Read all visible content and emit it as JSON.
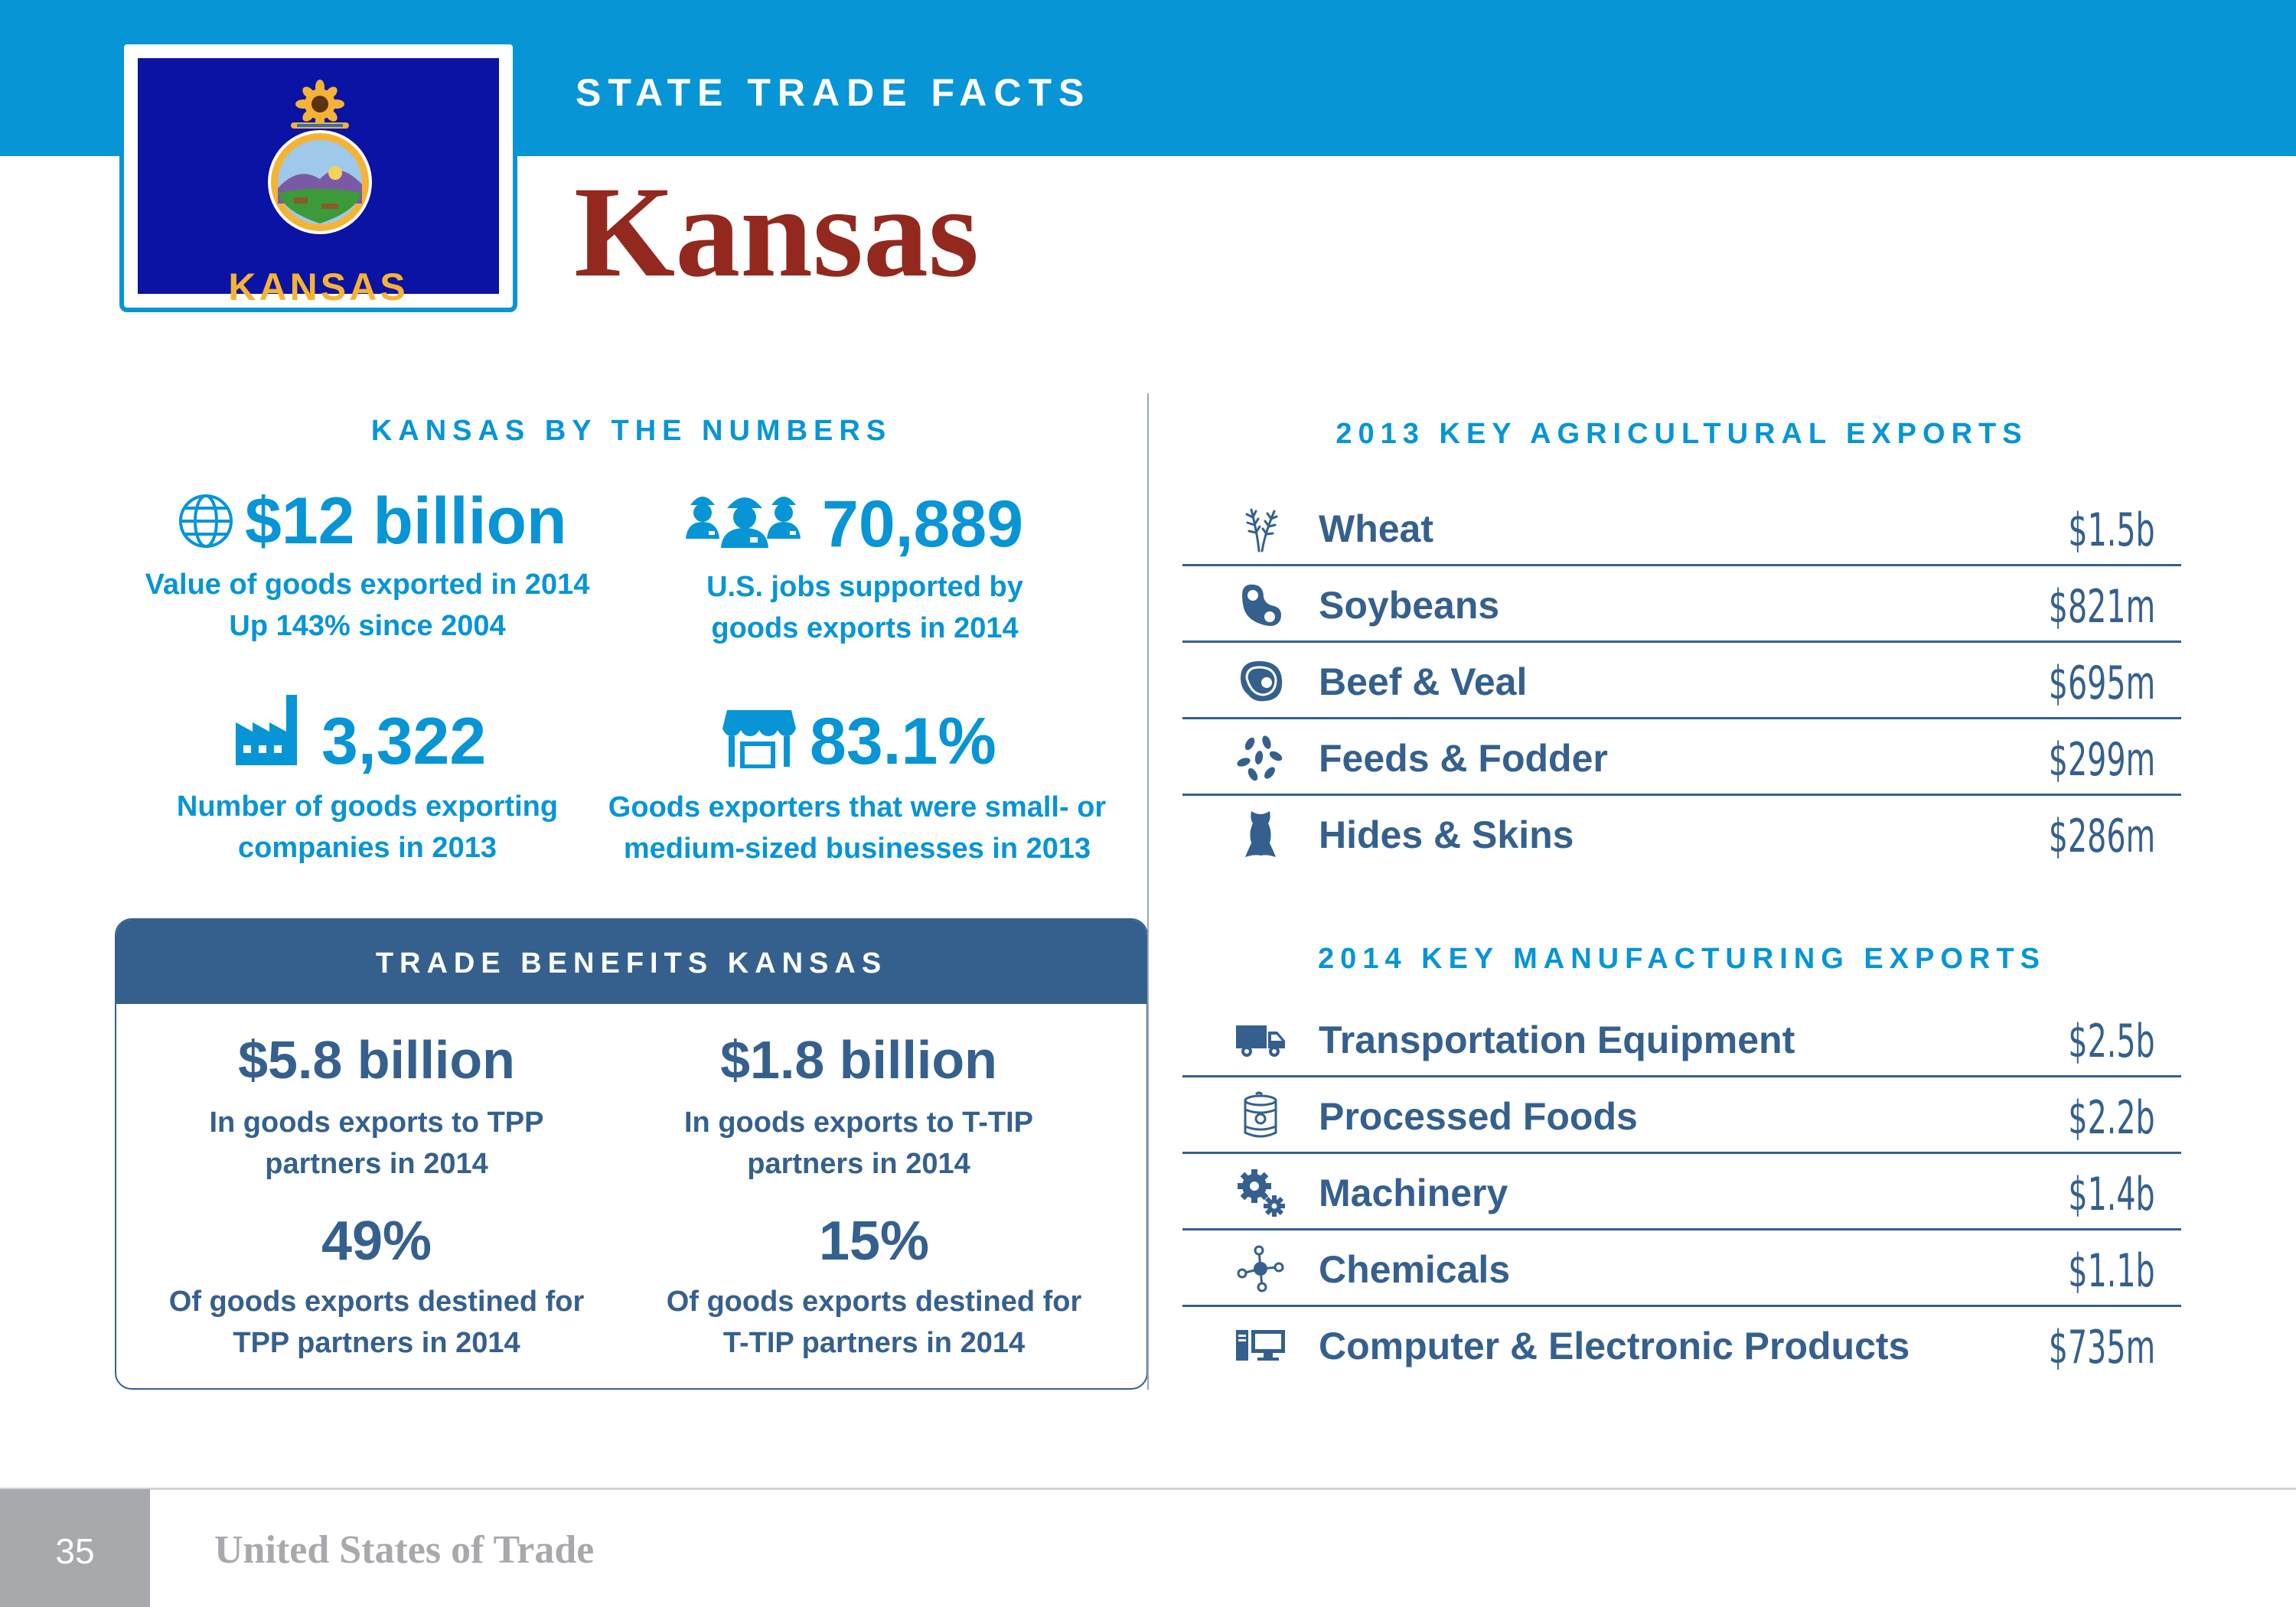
{
  "header": {
    "kicker": "STATE TRADE FACTS",
    "title": "Kansas",
    "flag_word": "KANSAS"
  },
  "numbers": {
    "heading": "KANSAS BY THE NUMBERS",
    "stats": [
      {
        "value": "$12 billion",
        "caption_1": "Value of goods exported in 2014",
        "caption_2": "Up 143% since 2004",
        "icon": "globe-icon"
      },
      {
        "value": "70,889",
        "caption_1": "U.S. jobs supported by",
        "caption_2": "goods exports in 2014",
        "icon": "workers-icon"
      },
      {
        "value": "3,322",
        "caption_1": "Number of goods exporting",
        "caption_2": "companies in 2013",
        "icon": "factory-icon"
      },
      {
        "value": "83.1%",
        "caption_1": "Goods exporters that were small- or",
        "caption_2": "medium-sized businesses in 2013",
        "icon": "storefront-icon"
      }
    ]
  },
  "benefits": {
    "heading": "TRADE BENEFITS KANSAS",
    "items": [
      {
        "value": "$5.8 billion",
        "caption_1": "In goods exports to TPP",
        "caption_2": "partners in 2014"
      },
      {
        "value": "$1.8 billion",
        "caption_1": "In goods exports to T-TIP",
        "caption_2": "partners in 2014"
      },
      {
        "value": "49%",
        "caption_1": "Of goods exports destined for",
        "caption_2": "TPP partners in 2014"
      },
      {
        "value": "15%",
        "caption_1": "Of goods exports destined for",
        "caption_2": "T-TIP partners in 2014"
      }
    ]
  },
  "agricultural": {
    "heading": "2013 KEY AGRICULTURAL EXPORTS",
    "rows": [
      {
        "name": "Wheat",
        "value": "$1.5b",
        "icon": "wheat-icon"
      },
      {
        "name": "Soybeans",
        "value": "$821m",
        "icon": "soybean-icon"
      },
      {
        "name": "Beef & Veal",
        "value": "$695m",
        "icon": "steak-icon"
      },
      {
        "name": "Feeds & Fodder",
        "value": "$299m",
        "icon": "grain-icon"
      },
      {
        "name": "Hides & Skins",
        "value": "$286m",
        "icon": "hide-icon"
      }
    ]
  },
  "manufacturing": {
    "heading": "2014 KEY MANUFACTURING EXPORTS",
    "rows": [
      {
        "name": "Transportation Equipment",
        "value": "$2.5b",
        "icon": "truck-icon"
      },
      {
        "name": "Processed Foods",
        "value": "$2.2b",
        "icon": "can-icon"
      },
      {
        "name": "Machinery",
        "value": "$1.4b",
        "icon": "gears-icon"
      },
      {
        "name": "Chemicals",
        "value": "$1.1b",
        "icon": "molecule-icon"
      },
      {
        "name": "Computer & Electronic Products",
        "value": "$735m",
        "icon": "computer-icon"
      }
    ]
  },
  "footer": {
    "page_number": "35",
    "publication": "United States of Trade"
  },
  "colors": {
    "brand_blue": "#0795d6",
    "navy": "#35608e",
    "title_red": "#93291e",
    "flag_blue": "#0a13a4",
    "flag_gold": "#f5b335"
  }
}
